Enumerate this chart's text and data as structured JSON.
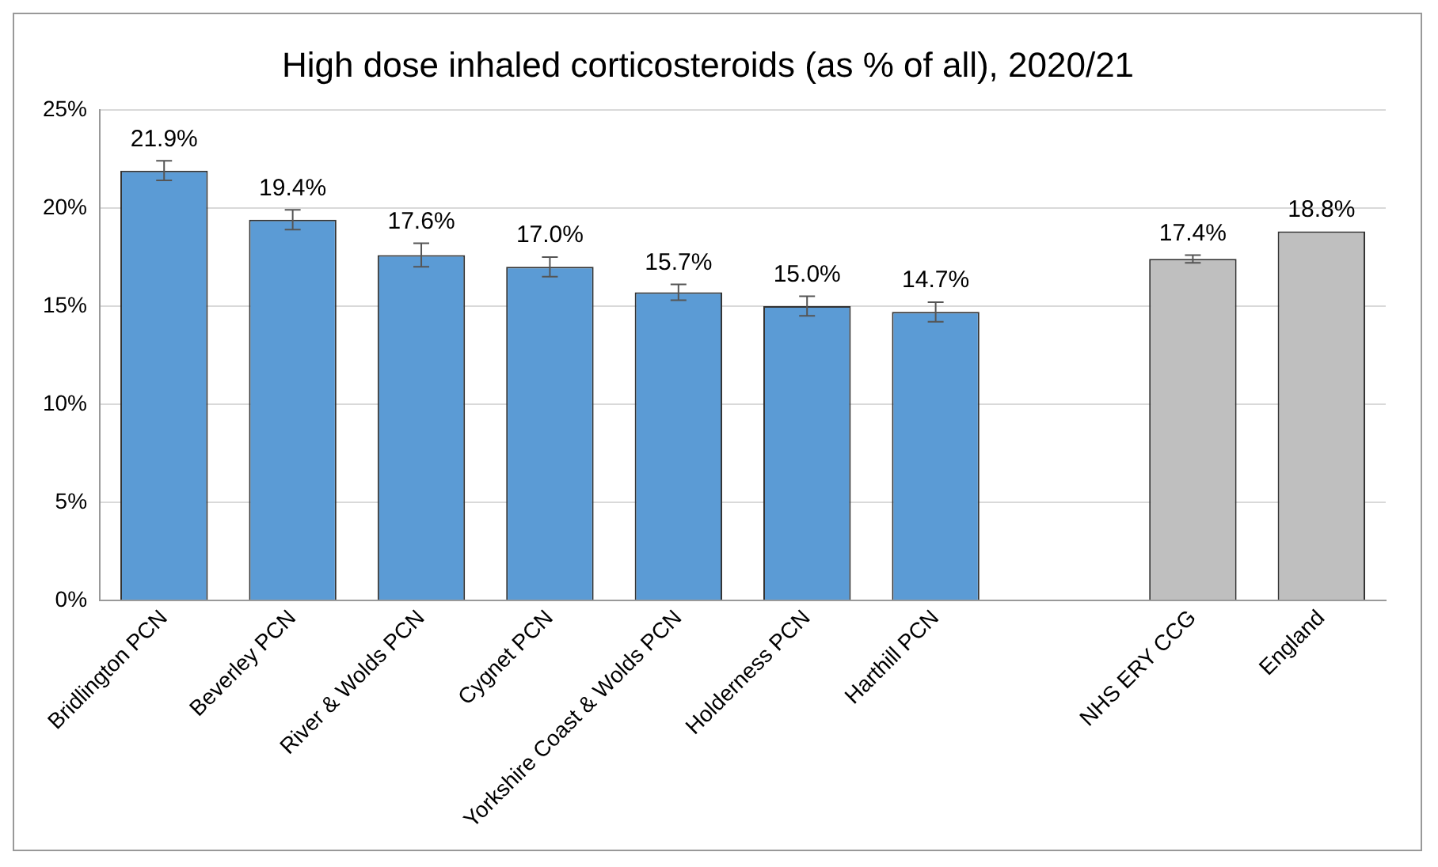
{
  "chart_data": {
    "type": "bar",
    "title": "High dose inhaled corticosteroids (as % of all), 2020/21",
    "categories": [
      "Bridlington PCN",
      "Beverley PCN",
      "River & Wolds PCN",
      "Cygnet PCN",
      "Yorkshire Coast & Wolds PCN",
      "Holderness PCN",
      "Harthill PCN",
      null,
      "NHS ERY CCG",
      "England"
    ],
    "values": [
      21.9,
      19.4,
      17.6,
      17.0,
      15.7,
      15.0,
      14.7,
      null,
      17.4,
      18.8
    ],
    "colors": [
      "#5b9bd5",
      "#5b9bd5",
      "#5b9bd5",
      "#5b9bd5",
      "#5b9bd5",
      "#5b9bd5",
      "#5b9bd5",
      null,
      "#bfbfbf",
      "#bfbfbf"
    ],
    "errors": [
      0.5,
      0.5,
      0.6,
      0.5,
      0.4,
      0.5,
      0.5,
      null,
      0.2,
      null
    ],
    "value_labels": [
      "21.9%",
      "19.4%",
      "17.6%",
      "17.0%",
      "15.7%",
      "15.0%",
      "14.7%",
      null,
      "17.4%",
      "18.8%"
    ],
    "ylim": [
      0,
      25
    ],
    "yticks": [
      {
        "value": 0,
        "label": "0%"
      },
      {
        "value": 5,
        "label": "5%"
      },
      {
        "value": 10,
        "label": "10%"
      },
      {
        "value": 15,
        "label": "15%"
      },
      {
        "value": 20,
        "label": "20%"
      },
      {
        "value": 25,
        "label": "25%"
      }
    ],
    "grid": "y",
    "legend": false
  }
}
